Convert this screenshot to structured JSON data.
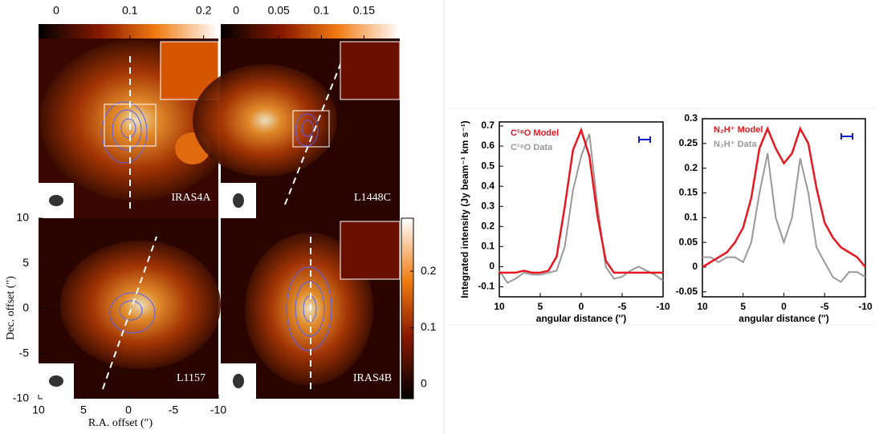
{
  "maps": {
    "colorbars": [
      {
        "lim": [
          -0.024,
          0.22
        ],
        "ticks": [
          0,
          0.1,
          0.2
        ]
      },
      {
        "lim": [
          -0.018,
          0.192
        ],
        "ticks": [
          0,
          0.05,
          0.1,
          0.15
        ]
      },
      {
        "lim": [
          -0.026,
          0.294
        ],
        "ticks": [
          0,
          0.1,
          0.2
        ]
      }
    ],
    "panels": [
      "IRAS4A",
      "L1448C",
      "L1157",
      "IRAS4B"
    ],
    "xlabel": "R.A. offset (″)",
    "ylabel": "Dec. offset (″)",
    "xlim": [
      10,
      -10
    ],
    "xticks": [
      10,
      5,
      0,
      -5,
      -10
    ],
    "ylim": [
      -10,
      10
    ],
    "yticks": [
      10,
      5,
      0,
      -5,
      -10
    ]
  },
  "chart_data": [
    {
      "type": "line",
      "xlabel": "angular distance (″)",
      "ylabel": "Integrated intensity (Jy beam⁻¹ km s⁻¹)",
      "x": [
        10,
        9,
        8,
        7,
        6,
        5,
        4,
        3,
        2,
        1,
        0,
        -1,
        -2,
        -3,
        -4,
        -5,
        -6,
        -7,
        -8,
        -9,
        -10
      ],
      "xlim": [
        10,
        -10
      ],
      "xticks": [
        10,
        5,
        0,
        -5,
        -10
      ],
      "ylim": [
        -0.15,
        0.72
      ],
      "yticks": [
        -0.1,
        0,
        0.1,
        0.2,
        0.3,
        0.4,
        0.5,
        0.6,
        0.7
      ],
      "series": [
        {
          "name": "C¹⁸O Model",
          "color": "#e8161e",
          "values": [
            -0.03,
            -0.03,
            -0.03,
            -0.02,
            -0.03,
            -0.03,
            -0.02,
            0.05,
            0.3,
            0.58,
            0.68,
            0.55,
            0.25,
            0.03,
            -0.03,
            -0.03,
            -0.03,
            -0.03,
            -0.03,
            -0.03,
            -0.03
          ]
        },
        {
          "name": "C¹⁸O Data",
          "color": "#999999",
          "values": [
            -0.02,
            -0.08,
            -0.06,
            -0.03,
            -0.04,
            -0.04,
            -0.03,
            -0.02,
            0.1,
            0.38,
            0.55,
            0.66,
            0.3,
            0.0,
            -0.06,
            -0.05,
            -0.02,
            0.0,
            -0.02,
            -0.04,
            -0.07
          ]
        }
      ]
    },
    {
      "type": "line",
      "xlabel": "angular distance (″)",
      "x": [
        10,
        9,
        8,
        7,
        6,
        5,
        4,
        3,
        2,
        1,
        0,
        -1,
        -2,
        -3,
        -4,
        -5,
        -6,
        -7,
        -8,
        -9,
        -10
      ],
      "xlim": [
        10,
        -10
      ],
      "xticks": [
        10,
        5,
        0,
        -5,
        -10
      ],
      "ylim": [
        -0.06,
        0.3
      ],
      "yticks": [
        -0.05,
        0,
        0.05,
        0.1,
        0.15,
        0.2,
        0.25,
        0.3
      ],
      "series": [
        {
          "name": "N₂H⁺ Model",
          "color": "#e8161e",
          "values": [
            0.0,
            0.01,
            0.02,
            0.03,
            0.05,
            0.08,
            0.14,
            0.24,
            0.28,
            0.24,
            0.21,
            0.23,
            0.28,
            0.25,
            0.16,
            0.09,
            0.06,
            0.04,
            0.03,
            0.02,
            0.0
          ]
        },
        {
          "name": "N₂H⁺ Data",
          "color": "#999999",
          "values": [
            0.02,
            0.02,
            0.01,
            0.02,
            0.02,
            0.01,
            0.05,
            0.15,
            0.23,
            0.1,
            0.05,
            0.1,
            0.22,
            0.15,
            0.04,
            0.01,
            -0.02,
            -0.03,
            -0.01,
            -0.01,
            -0.02
          ]
        }
      ]
    }
  ]
}
